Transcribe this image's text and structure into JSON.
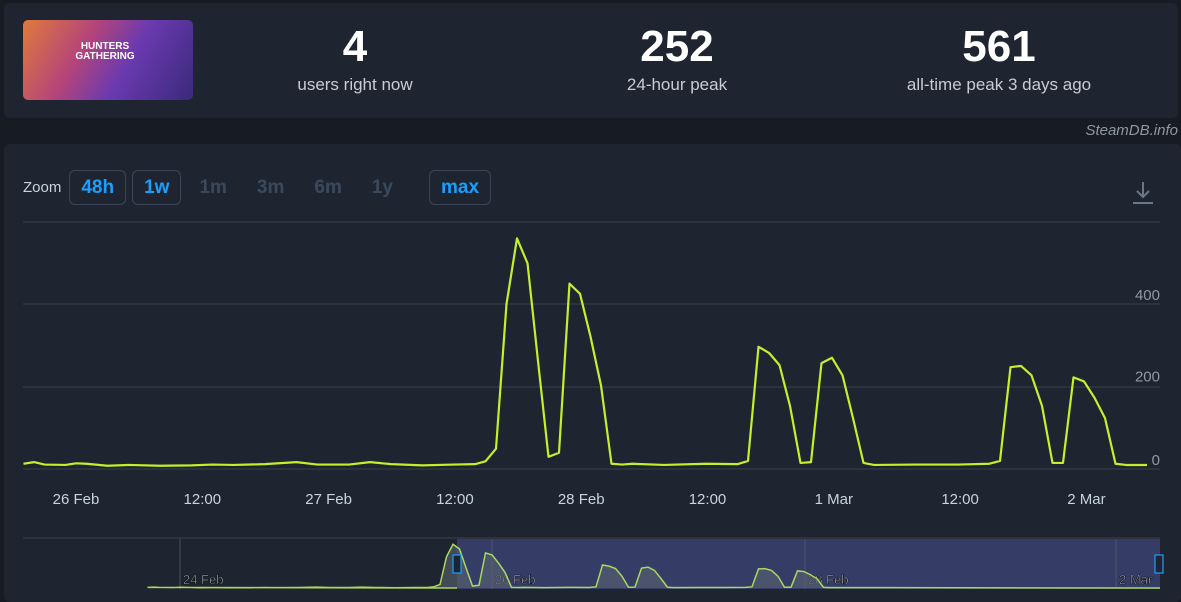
{
  "header": {
    "game_image_text": "HUNTERS GATHERING",
    "stats": [
      {
        "value": "4",
        "label": "users right now"
      },
      {
        "value": "252",
        "label": "24-hour peak"
      },
      {
        "value": "561",
        "label": "all-time peak 3 days ago"
      }
    ],
    "credit": "SteamDB.info"
  },
  "zoom": {
    "label": "Zoom",
    "options": [
      {
        "label": "48h",
        "active": true
      },
      {
        "label": "1w",
        "active": true
      },
      {
        "label": "1m",
        "active": false
      },
      {
        "label": "3m",
        "active": false
      },
      {
        "label": "6m",
        "active": false
      },
      {
        "label": "1y",
        "active": false
      },
      {
        "label": "max",
        "active": true
      }
    ]
  },
  "download_icon": "download-icon",
  "colors": {
    "line": "#c2f02a",
    "accent": "#1a9fff",
    "navigator_selection": "#3a4270"
  },
  "chart_data": {
    "type": "line",
    "ylim": [
      0,
      600
    ],
    "yticks": [
      0,
      200,
      400
    ],
    "ytick_labels": [
      "0",
      "200",
      "400"
    ],
    "grid": true,
    "xtick_labels": [
      "26 Feb",
      "12:00",
      "27 Feb",
      "12:00",
      "28 Feb",
      "12:00",
      "1 Mar",
      "12:00",
      "2 Mar"
    ],
    "navigator_labels": [
      "24 Feb",
      "26 Feb",
      "28 Feb",
      "2 Mar"
    ],
    "series": [
      {
        "points": [
          [
            "25 Feb 19:00",
            8
          ],
          [
            "25 Feb 20:00",
            12
          ],
          [
            "25 Feb 21:00",
            6
          ],
          [
            "25 Feb 23:00",
            5
          ],
          [
            "26 Feb 00:00",
            9
          ],
          [
            "26 Feb 01:00",
            8
          ],
          [
            "26 Feb 03:00",
            3
          ],
          [
            "26 Feb 05:00",
            5
          ],
          [
            "26 Feb 08:00",
            3
          ],
          [
            "26 Feb 11:00",
            4
          ],
          [
            "26 Feb 13:00",
            6
          ],
          [
            "26 Feb 15:00",
            5
          ],
          [
            "26 Feb 18:00",
            7
          ],
          [
            "26 Feb 21:00",
            12
          ],
          [
            "26 Feb 23:00",
            6
          ],
          [
            "27 Feb 02:00",
            6
          ],
          [
            "27 Feb 04:00",
            12
          ],
          [
            "27 Feb 06:00",
            7
          ],
          [
            "27 Feb 09:00",
            4
          ],
          [
            "27 Feb 12:00",
            6
          ],
          [
            "27 Feb 14:00",
            7
          ],
          [
            "27 Feb 15:00",
            14
          ],
          [
            "27 Feb 16:00",
            45
          ],
          [
            "27 Feb 17:00",
            400
          ],
          [
            "27 Feb 18:00",
            561
          ],
          [
            "27 Feb 19:00",
            500
          ],
          [
            "27 Feb 20:00",
            260
          ],
          [
            "27 Feb 21:00",
            25
          ],
          [
            "27 Feb 22:00",
            35
          ],
          [
            "27 Feb 23:00",
            450
          ],
          [
            "28 Feb 00:00",
            425
          ],
          [
            "28 Feb 01:00",
            320
          ],
          [
            "28 Feb 02:00",
            200
          ],
          [
            "28 Feb 03:00",
            8
          ],
          [
            "28 Feb 04:00",
            6
          ],
          [
            "28 Feb 05:00",
            8
          ],
          [
            "28 Feb 08:00",
            5
          ],
          [
            "28 Feb 12:00",
            8
          ],
          [
            "28 Feb 15:00",
            7
          ],
          [
            "28 Feb 16:00",
            15
          ],
          [
            "28 Feb 17:00",
            295
          ],
          [
            "28 Feb 18:00",
            280
          ],
          [
            "28 Feb 19:00",
            250
          ],
          [
            "28 Feb 20:00",
            150
          ],
          [
            "28 Feb 21:00",
            10
          ],
          [
            "28 Feb 22:00",
            12
          ],
          [
            "28 Feb 23:00",
            255
          ],
          [
            "1 Mar 00:00",
            268
          ],
          [
            "1 Mar 01:00",
            225
          ],
          [
            "1 Mar 02:00",
            120
          ],
          [
            "1 Mar 03:00",
            10
          ],
          [
            "1 Mar 04:00",
            5
          ],
          [
            "1 Mar 08:00",
            6
          ],
          [
            "1 Mar 12:00",
            6
          ],
          [
            "1 Mar 15:00",
            8
          ],
          [
            "1 Mar 16:00",
            15
          ],
          [
            "1 Mar 17:00",
            245
          ],
          [
            "1 Mar 18:00",
            248
          ],
          [
            "1 Mar 19:00",
            225
          ],
          [
            "1 Mar 20:00",
            150
          ],
          [
            "1 Mar 21:00",
            10
          ],
          [
            "1 Mar 22:00",
            10
          ],
          [
            "1 Mar 23:00",
            220
          ],
          [
            "2 Mar 00:00",
            210
          ],
          [
            "2 Mar 01:00",
            170
          ],
          [
            "2 Mar 02:00",
            120
          ],
          [
            "2 Mar 03:00",
            8
          ],
          [
            "2 Mar 04:00",
            5
          ],
          [
            "2 Mar 06:00",
            5
          ]
        ]
      }
    ]
  }
}
